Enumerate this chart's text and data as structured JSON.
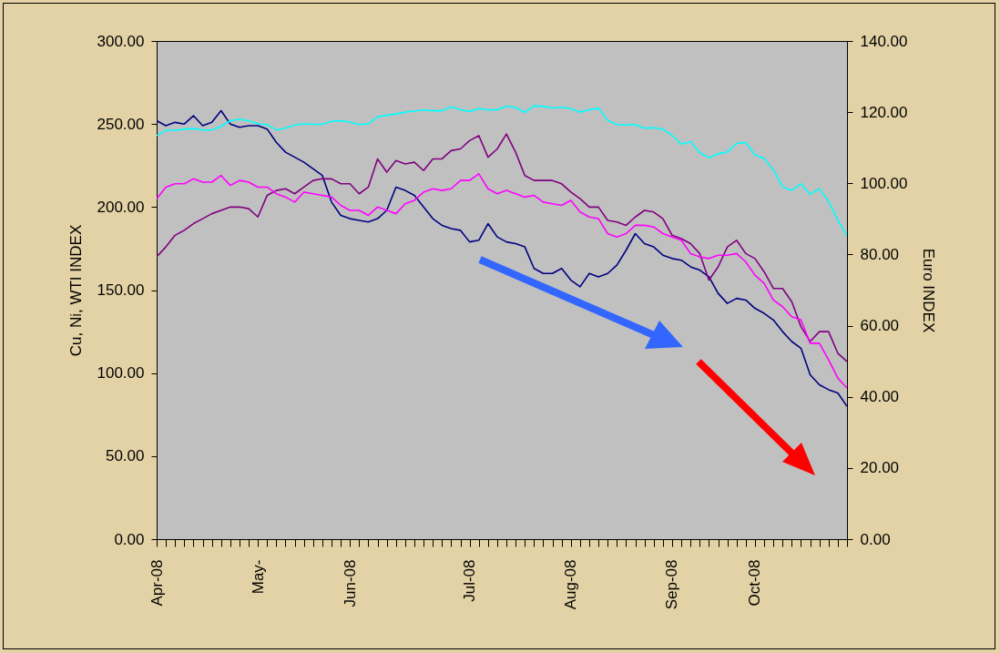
{
  "chart_data": {
    "type": "line",
    "ylabel": "Cu, Ni, WTI INDEX",
    "y2label": "Euro INDEX",
    "grid": false,
    "categories": [
      "Apr-08",
      null,
      null,
      null,
      null,
      null,
      null,
      null,
      null,
      null,
      null,
      "May-",
      null,
      null,
      null,
      null,
      null,
      null,
      null,
      null,
      null,
      "Jun-08",
      null,
      null,
      null,
      null,
      null,
      null,
      null,
      null,
      null,
      null,
      null,
      null,
      "Jul-08",
      null,
      null,
      null,
      null,
      null,
      null,
      null,
      null,
      null,
      null,
      "Aug-08",
      null,
      null,
      null,
      null,
      null,
      null,
      null,
      null,
      null,
      null,
      "Sep-08",
      null,
      null,
      null,
      null,
      null,
      null,
      null,
      null,
      "Oct-08",
      null,
      null,
      null,
      null,
      null,
      null,
      null,
      null,
      null,
      null
    ],
    "ylim": [
      0,
      300
    ],
    "yticks": [
      {
        "value": 0,
        "label": "0.00"
      },
      {
        "value": 50,
        "label": "50.00"
      },
      {
        "value": 100,
        "label": "100.00"
      },
      {
        "value": 150,
        "label": "150.00"
      },
      {
        "value": 200,
        "label": "200.00"
      },
      {
        "value": 250,
        "label": "250.00"
      },
      {
        "value": 300,
        "label": "300.00"
      }
    ],
    "y2lim": [
      0,
      140
    ],
    "y2ticks": [
      {
        "value": 0,
        "label": "0.00"
      },
      {
        "value": 20,
        "label": "20.00"
      },
      {
        "value": 40,
        "label": "40.00"
      },
      {
        "value": 60,
        "label": "60.00"
      },
      {
        "value": 80,
        "label": "80.00"
      },
      {
        "value": 100,
        "label": "100.00"
      },
      {
        "value": 120,
        "label": "120.00"
      },
      {
        "value": 140,
        "label": "140.00"
      }
    ],
    "series": [
      {
        "color": "#000080",
        "values": [
          252,
          249,
          251,
          250,
          255,
          249,
          251,
          258,
          250,
          248,
          249,
          249,
          247,
          239,
          233,
          230,
          227,
          223,
          219,
          203,
          195,
          193,
          192,
          191,
          193,
          198,
          212,
          210,
          207,
          200,
          193,
          189,
          187,
          186,
          179,
          180,
          190,
          182,
          179,
          178,
          176,
          163,
          160,
          160,
          163,
          156,
          152,
          160,
          158,
          160,
          165,
          174,
          184,
          178,
          176,
          171,
          169,
          168,
          164,
          162,
          158,
          148,
          142,
          145,
          144,
          139,
          136,
          132,
          125,
          119,
          115,
          99,
          93,
          90,
          88,
          80
        ]
      },
      {
        "color": "#800080",
        "values": [
          170,
          176,
          183,
          186,
          190,
          193,
          196,
          198,
          200,
          200,
          199,
          194,
          207,
          210,
          211,
          208,
          212,
          216,
          217,
          217,
          214,
          214,
          208,
          212,
          229,
          221,
          228,
          226,
          227,
          222,
          229,
          229,
          234,
          235,
          240,
          243,
          230,
          235,
          244,
          233,
          219,
          216,
          216,
          216,
          214,
          209,
          205,
          200,
          200,
          192,
          191,
          189,
          194,
          198,
          197,
          193,
          183,
          181,
          178,
          172,
          156,
          164,
          176,
          180,
          172,
          169,
          161,
          151,
          151,
          143,
          128,
          119,
          125,
          125,
          112,
          107
        ]
      },
      {
        "color": "#ff00ff",
        "values": [
          205,
          212,
          214,
          214,
          217,
          215,
          215,
          219,
          213,
          216,
          215,
          212,
          212,
          208,
          206,
          203,
          209,
          208,
          207,
          206,
          201,
          198,
          198,
          195,
          200,
          198,
          196,
          202,
          204,
          209,
          211,
          210,
          211,
          216,
          216,
          220,
          211,
          208,
          210,
          208,
          206,
          207,
          203,
          202,
          201,
          204,
          197,
          194,
          193,
          184,
          182,
          184,
          189,
          189,
          188,
          184,
          182,
          180,
          172,
          170,
          169,
          171,
          171,
          172,
          167,
          159,
          154,
          144,
          140,
          134,
          132,
          118,
          118,
          108,
          97,
          91
        ]
      },
      {
        "color": "#00ffff",
        "axis": "y2",
        "values": [
          113.4,
          114.9,
          114.9,
          115.2,
          115.4,
          115.0,
          115.0,
          116.0,
          117.6,
          118.0,
          117.6,
          116.7,
          116.5,
          115.0,
          115.5,
          116.4,
          116.7,
          116.6,
          116.6,
          117.4,
          117.6,
          117.2,
          116.5,
          116.7,
          118.7,
          119.1,
          119.5,
          120.0,
          120.3,
          120.6,
          120.4,
          120.4,
          121.5,
          120.7,
          120.2,
          121.0,
          120.6,
          120.7,
          121.7,
          121.3,
          119.9,
          121.8,
          121.6,
          121.2,
          121.4,
          121.0,
          120.0,
          120.7,
          121.1,
          117.7,
          116.5,
          116.4,
          116.5,
          115.5,
          115.6,
          115.2,
          113.5,
          111.0,
          111.7,
          108.6,
          107.2,
          108.3,
          108.8,
          111.2,
          111.5,
          108.0,
          107.0,
          103.8,
          99.0,
          98.0,
          99.9,
          96.9,
          98.5,
          94.9,
          89.7,
          85.2
        ]
      }
    ]
  }
}
